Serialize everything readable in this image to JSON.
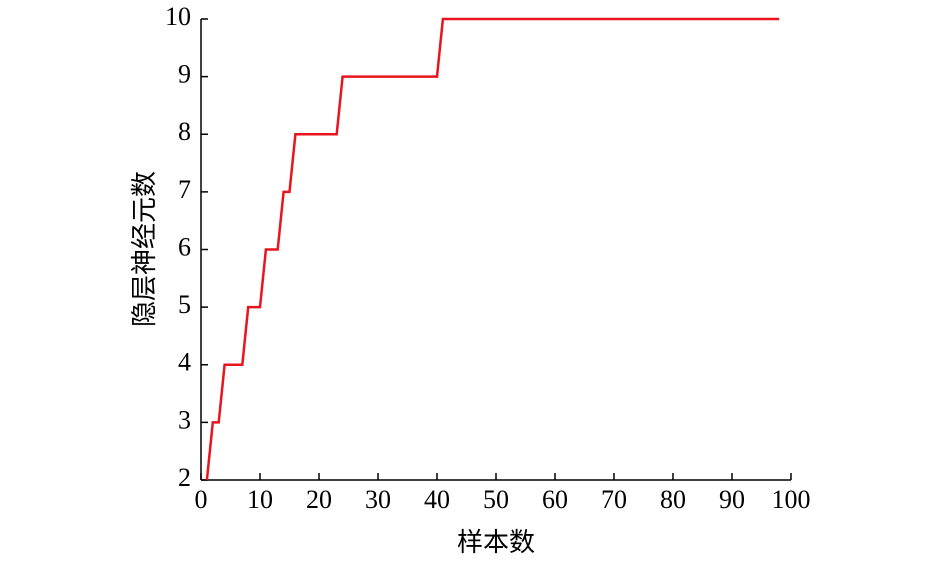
{
  "chart_data": {
    "type": "line",
    "x_label": "样本数",
    "y_label": "隐层神经元数",
    "series": [
      {
        "color": "#e8141e",
        "x": [
          1,
          2,
          3,
          4,
          7,
          8,
          10,
          11,
          13,
          14,
          15,
          16,
          23,
          24,
          40,
          41,
          98
        ],
        "values": [
          2,
          3,
          3,
          4,
          4,
          5,
          5,
          6,
          6,
          7,
          7,
          8,
          8,
          9,
          9,
          10,
          10
        ]
      }
    ],
    "xlim": [
      0,
      100
    ],
    "xticks": [
      0,
      10,
      20,
      30,
      40,
      50,
      60,
      70,
      80,
      90,
      100
    ],
    "ylim": [
      2,
      10
    ],
    "yticks": [
      2,
      3,
      4,
      5,
      6,
      7,
      8,
      9,
      10
    ],
    "grid": false
  }
}
